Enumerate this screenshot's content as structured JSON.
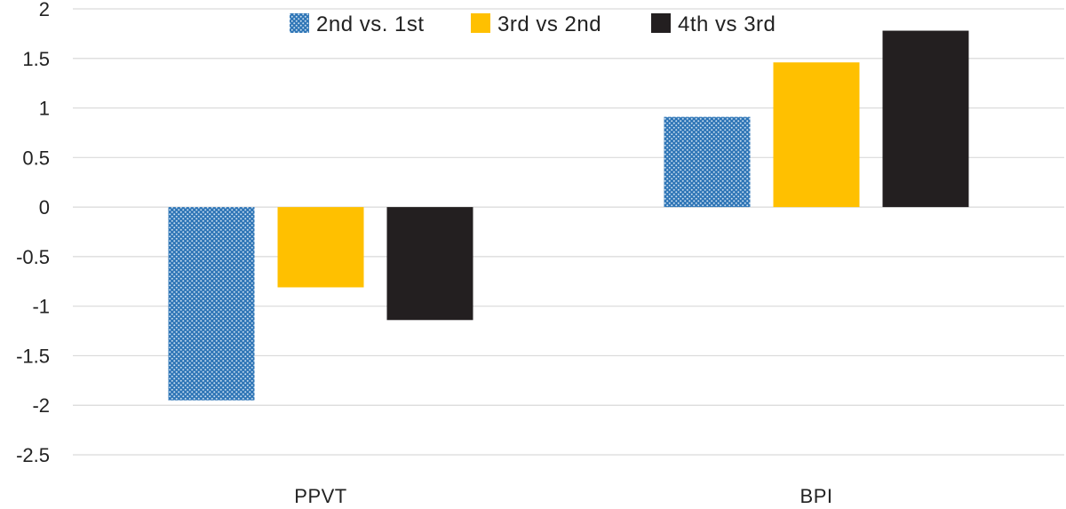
{
  "chart_data": {
    "type": "bar",
    "title": "",
    "xlabel": "",
    "ylabel": "",
    "categories": [
      "PPVT",
      "BPI"
    ],
    "series": [
      {
        "name": "2nd vs. 1st",
        "color": "#2e75b6",
        "pattern": "dotted",
        "values": [
          -1.95,
          0.91
        ]
      },
      {
        "name": "3rd vs 2nd",
        "color": "#ffc000",
        "pattern": "solid",
        "values": [
          -0.81,
          1.46
        ]
      },
      {
        "name": "4th vs 3rd",
        "color": "#231f20",
        "pattern": "solid",
        "values": [
          -1.14,
          1.78
        ]
      }
    ],
    "ylim": [
      -2.5,
      2
    ],
    "yticks": [
      2,
      1.5,
      1,
      0.5,
      0,
      -0.5,
      -1,
      -1.5,
      -2,
      -2.5
    ],
    "ytick_labels": [
      "2",
      "1.5",
      "1",
      "0.5",
      "0",
      "-0.5",
      "-1",
      "-1.5",
      "-2",
      "-2.5"
    ],
    "grid": true,
    "legend_position": "top-center"
  }
}
